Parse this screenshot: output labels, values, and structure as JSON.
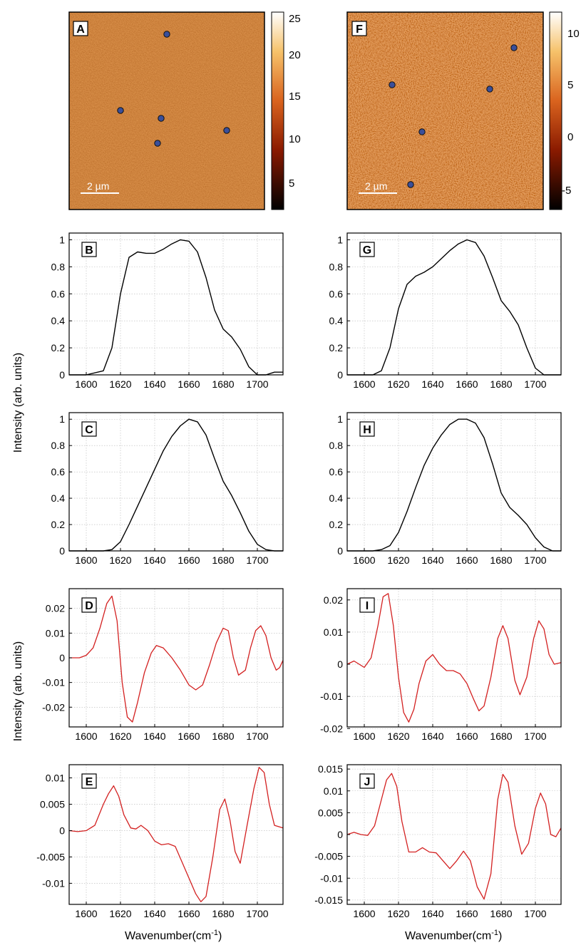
{
  "colors": {
    "spectrum_line": "#000000",
    "second_derivative_line": "#d32020",
    "grid": "#b8b8b8",
    "map_marker": "#3a4f9a"
  },
  "common": {
    "y_label": "Intensity (arb. units)",
    "x_label_text": "Wavenumber(cm",
    "x_label_sup": "-1",
    "x_label_close": ")"
  },
  "maps": [
    {
      "panel": "A",
      "scale_bar": "2 µm",
      "colorbar_ticks": [
        "25",
        "20",
        "15",
        "10",
        "5"
      ],
      "colorbar_range": [
        2,
        25
      ],
      "colormap": "afmhot",
      "markers": 5
    },
    {
      "panel": "F",
      "scale_bar": "2 µm",
      "colorbar_ticks": [
        "10",
        "5",
        "0",
        "-5"
      ],
      "colorbar_range": [
        -6.5,
        12
      ],
      "colormap": "afmhot",
      "markers": 5
    }
  ],
  "chart_data": [
    {
      "panel": "B",
      "type": "line",
      "xlim": [
        1590,
        1715
      ],
      "ylim": [
        0,
        1.05
      ],
      "grid": true,
      "x_ticks": [
        1600,
        1620,
        1640,
        1660,
        1680,
        1700
      ],
      "y_ticks": [
        0,
        0.2,
        0.4,
        0.6,
        0.8,
        1
      ],
      "series": [
        {
          "x": [
            1590,
            1600,
            1610,
            1615,
            1620,
            1625,
            1630,
            1635,
            1640,
            1645,
            1650,
            1655,
            1660,
            1665,
            1670,
            1675,
            1680,
            1685,
            1690,
            1695,
            1700,
            1705,
            1710,
            1715
          ],
          "y": [
            0,
            0,
            0.03,
            0.2,
            0.6,
            0.87,
            0.91,
            0.9,
            0.9,
            0.93,
            0.97,
            1.0,
            0.99,
            0.91,
            0.72,
            0.48,
            0.34,
            0.28,
            0.19,
            0.06,
            0.0,
            0.0,
            0.02,
            0.02
          ]
        }
      ]
    },
    {
      "panel": "C",
      "type": "line",
      "xlim": [
        1590,
        1715
      ],
      "ylim": [
        0,
        1.05
      ],
      "grid": true,
      "x_ticks": [
        1600,
        1620,
        1640,
        1660,
        1680,
        1700
      ],
      "y_ticks": [
        0,
        0.2,
        0.4,
        0.6,
        0.8,
        1
      ],
      "series": [
        {
          "x": [
            1590,
            1600,
            1610,
            1615,
            1620,
            1625,
            1630,
            1635,
            1640,
            1645,
            1650,
            1655,
            1660,
            1665,
            1670,
            1675,
            1680,
            1685,
            1690,
            1695,
            1700,
            1705,
            1710,
            1715
          ],
          "y": [
            0,
            0,
            0,
            0.01,
            0.07,
            0.2,
            0.34,
            0.48,
            0.62,
            0.76,
            0.87,
            0.95,
            1.0,
            0.98,
            0.88,
            0.7,
            0.53,
            0.42,
            0.29,
            0.15,
            0.05,
            0.01,
            0,
            0
          ]
        }
      ]
    },
    {
      "panel": "D",
      "type": "line",
      "xlim": [
        1590,
        1715
      ],
      "ylim": [
        -0.028,
        0.028
      ],
      "grid": true,
      "x_ticks": [
        1600,
        1620,
        1640,
        1660,
        1680,
        1700
      ],
      "y_ticks": [
        -0.02,
        -0.01,
        0,
        0.01,
        0.02
      ],
      "series": [
        {
          "x": [
            1590,
            1596,
            1600,
            1604,
            1608,
            1612,
            1615,
            1618,
            1621,
            1624,
            1627,
            1630,
            1634,
            1638,
            1641,
            1645,
            1650,
            1655,
            1660,
            1664,
            1668,
            1672,
            1676,
            1680,
            1683,
            1686,
            1689,
            1693,
            1696,
            1699,
            1702,
            1705,
            1708,
            1711,
            1713,
            1715
          ],
          "y": [
            0.0,
            0.0,
            0.001,
            0.004,
            0.012,
            0.022,
            0.025,
            0.015,
            -0.01,
            -0.024,
            -0.026,
            -0.018,
            -0.006,
            0.002,
            0.005,
            0.004,
            0.0,
            -0.005,
            -0.011,
            -0.013,
            -0.011,
            -0.003,
            0.006,
            0.012,
            0.011,
            0.0,
            -0.007,
            -0.005,
            0.004,
            0.011,
            0.013,
            0.009,
            0.0,
            -0.005,
            -0.004,
            -0.001
          ]
        }
      ]
    },
    {
      "panel": "E",
      "type": "line",
      "xlim": [
        1590,
        1715
      ],
      "ylim": [
        -0.014,
        0.0125
      ],
      "grid": true,
      "x_ticks": [
        1600,
        1620,
        1640,
        1660,
        1680,
        1700
      ],
      "y_ticks": [
        -0.01,
        -0.005,
        0,
        0.005,
        0.01
      ],
      "series": [
        {
          "x": [
            1590,
            1595,
            1600,
            1605,
            1610,
            1613,
            1616,
            1619,
            1622,
            1626,
            1629,
            1632,
            1636,
            1640,
            1644,
            1648,
            1652,
            1656,
            1660,
            1664,
            1667,
            1670,
            1674,
            1678,
            1681,
            1684,
            1687,
            1690,
            1694,
            1698,
            1701,
            1704,
            1707,
            1710,
            1715
          ],
          "y": [
            0.0,
            -0.0002,
            0.0,
            0.001,
            0.005,
            0.007,
            0.0085,
            0.0065,
            0.003,
            0.0005,
            0.0003,
            0.001,
            0.0,
            -0.002,
            -0.0027,
            -0.0025,
            -0.003,
            -0.006,
            -0.009,
            -0.012,
            -0.0135,
            -0.0125,
            -0.005,
            0.004,
            0.006,
            0.002,
            -0.004,
            -0.0062,
            0.001,
            0.008,
            0.012,
            0.011,
            0.005,
            0.001,
            0.0005
          ]
        }
      ]
    },
    {
      "panel": "G",
      "type": "line",
      "xlim": [
        1590,
        1715
      ],
      "ylim": [
        0,
        1.05
      ],
      "grid": true,
      "x_ticks": [
        1600,
        1620,
        1640,
        1660,
        1680,
        1700
      ],
      "y_ticks": [
        0,
        0.2,
        0.4,
        0.6,
        0.8,
        1
      ],
      "series": [
        {
          "x": [
            1590,
            1600,
            1605,
            1610,
            1615,
            1620,
            1625,
            1630,
            1635,
            1640,
            1645,
            1650,
            1655,
            1660,
            1665,
            1670,
            1675,
            1680,
            1685,
            1690,
            1695,
            1700,
            1705,
            1715
          ],
          "y": [
            0.0,
            0.0,
            0.0,
            0.03,
            0.2,
            0.49,
            0.67,
            0.73,
            0.76,
            0.8,
            0.86,
            0.92,
            0.97,
            1.0,
            0.98,
            0.88,
            0.72,
            0.55,
            0.47,
            0.37,
            0.2,
            0.05,
            0.0,
            0.0
          ]
        }
      ]
    },
    {
      "panel": "H",
      "type": "line",
      "xlim": [
        1590,
        1715
      ],
      "ylim": [
        0,
        1.05
      ],
      "grid": true,
      "x_ticks": [
        1600,
        1620,
        1640,
        1660,
        1680,
        1700
      ],
      "y_ticks": [
        0,
        0.2,
        0.4,
        0.6,
        0.8,
        1
      ],
      "series": [
        {
          "x": [
            1590,
            1600,
            1605,
            1610,
            1615,
            1620,
            1625,
            1630,
            1635,
            1640,
            1645,
            1650,
            1655,
            1660,
            1665,
            1670,
            1675,
            1680,
            1685,
            1690,
            1695,
            1700,
            1705,
            1710,
            1715
          ],
          "y": [
            0,
            0,
            0,
            0.01,
            0.04,
            0.14,
            0.3,
            0.48,
            0.65,
            0.78,
            0.88,
            0.96,
            1.0,
            1.0,
            0.97,
            0.86,
            0.66,
            0.44,
            0.33,
            0.27,
            0.2,
            0.1,
            0.03,
            0,
            0
          ]
        }
      ]
    },
    {
      "panel": "I",
      "type": "line",
      "xlim": [
        1590,
        1715
      ],
      "ylim": [
        -0.0195,
        0.0235
      ],
      "grid": true,
      "x_ticks": [
        1600,
        1620,
        1640,
        1660,
        1680,
        1700
      ],
      "y_ticks": [
        -0.02,
        -0.01,
        0,
        0.01,
        0.02
      ],
      "series": [
        {
          "x": [
            1590,
            1594,
            1597,
            1600,
            1604,
            1608,
            1611,
            1614,
            1617,
            1620,
            1623,
            1626,
            1629,
            1632,
            1636,
            1640,
            1644,
            1648,
            1652,
            1656,
            1660,
            1664,
            1667,
            1670,
            1674,
            1678,
            1681,
            1684,
            1688,
            1691,
            1695,
            1699,
            1702,
            1705,
            1708,
            1711,
            1715
          ],
          "y": [
            0.0,
            0.001,
            0.0,
            -0.001,
            0.002,
            0.012,
            0.021,
            0.022,
            0.012,
            -0.004,
            -0.015,
            -0.018,
            -0.014,
            -0.006,
            0.001,
            0.003,
            0.0,
            -0.002,
            -0.002,
            -0.003,
            -0.006,
            -0.011,
            -0.0145,
            -0.013,
            -0.004,
            0.008,
            0.012,
            0.008,
            -0.005,
            -0.0095,
            -0.004,
            0.008,
            0.0135,
            0.011,
            0.003,
            0.0,
            0.0005
          ]
        }
      ]
    },
    {
      "panel": "J",
      "type": "line",
      "xlim": [
        1590,
        1715
      ],
      "ylim": [
        -0.016,
        0.016
      ],
      "grid": true,
      "x_ticks": [
        1600,
        1620,
        1640,
        1660,
        1680,
        1700
      ],
      "y_ticks": [
        -0.015,
        -0.01,
        -0.005,
        0,
        0.005,
        0.01,
        0.015
      ],
      "series": [
        {
          "x": [
            1590,
            1594,
            1598,
            1602,
            1606,
            1610,
            1613,
            1616,
            1619,
            1622,
            1626,
            1630,
            1634,
            1638,
            1642,
            1646,
            1650,
            1654,
            1658,
            1662,
            1666,
            1670,
            1674,
            1678,
            1681,
            1684,
            1688,
            1692,
            1696,
            1700,
            1703,
            1706,
            1709,
            1712,
            1715
          ],
          "y": [
            0.0,
            0.0005,
            0.0,
            -0.0002,
            0.002,
            0.008,
            0.0125,
            0.014,
            0.011,
            0.003,
            -0.004,
            -0.004,
            -0.003,
            -0.004,
            -0.0042,
            -0.006,
            -0.0078,
            -0.006,
            -0.0038,
            -0.006,
            -0.012,
            -0.0148,
            -0.009,
            0.008,
            0.0138,
            0.012,
            0.002,
            -0.0045,
            -0.002,
            0.006,
            0.0095,
            0.007,
            0.0,
            -0.0005,
            0.0015
          ]
        }
      ]
    }
  ]
}
